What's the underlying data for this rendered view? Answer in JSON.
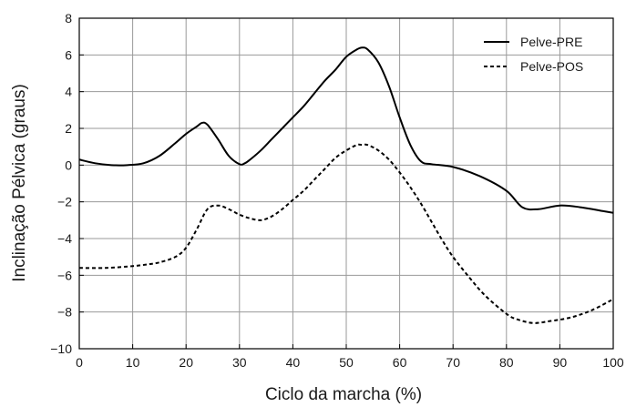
{
  "chart_data": {
    "type": "line",
    "title": "",
    "xlabel": "Ciclo da marcha (%)",
    "ylabel": "Inclinação Pélvica (graus)",
    "xlim": [
      0,
      100
    ],
    "ylim": [
      -10,
      8
    ],
    "xticks": [
      0,
      10,
      20,
      30,
      40,
      50,
      60,
      70,
      80,
      90,
      100
    ],
    "yticks": [
      -10,
      -8,
      -6,
      -4,
      -2,
      0,
      2,
      4,
      6,
      8
    ],
    "xtick_labels": [
      "0",
      "10",
      "20",
      "30",
      "40",
      "50",
      "60",
      "70",
      "80",
      "90",
      "100"
    ],
    "ytick_labels": [
      "−10",
      "−8",
      "−6",
      "−4",
      "−2",
      "0",
      "2",
      "4",
      "6",
      "8"
    ],
    "grid": true,
    "legend_position": "top-right",
    "series": [
      {
        "name": "Pelve-PRE",
        "line_style": "solid",
        "color": "#000000",
        "x": [
          0,
          3,
          6,
          9,
          12,
          15,
          18,
          20,
          22,
          23,
          24,
          26,
          28,
          30,
          31,
          32,
          34,
          36,
          38,
          40,
          42,
          44,
          46,
          48,
          50,
          52,
          53,
          54,
          56,
          58,
          60,
          62,
          64,
          66,
          70,
          75,
          80,
          83,
          86,
          90,
          94,
          98,
          100
        ],
        "y": [
          0.3,
          0.1,
          0.0,
          0.0,
          0.1,
          0.5,
          1.2,
          1.7,
          2.1,
          2.3,
          2.2,
          1.4,
          0.5,
          0.05,
          0.1,
          0.3,
          0.8,
          1.4,
          2.0,
          2.6,
          3.2,
          3.9,
          4.6,
          5.2,
          5.9,
          6.3,
          6.4,
          6.3,
          5.6,
          4.3,
          2.6,
          1.1,
          0.2,
          0.05,
          -0.1,
          -0.6,
          -1.4,
          -2.3,
          -2.4,
          -2.2,
          -2.3,
          -2.5,
          -2.6
        ]
      },
      {
        "name": "Pelve-POS",
        "line_style": "dashed",
        "color": "#000000",
        "x": [
          0,
          5,
          10,
          13,
          15,
          18,
          20,
          22,
          24,
          26,
          28,
          30,
          32,
          34,
          36,
          38,
          40,
          42,
          44,
          46,
          48,
          50,
          52,
          53,
          54,
          56,
          58,
          60,
          62,
          64,
          66,
          68,
          70,
          73,
          76,
          80,
          82,
          85,
          88,
          92,
          96,
          100
        ],
        "y": [
          -5.6,
          -5.6,
          -5.5,
          -5.4,
          -5.3,
          -5.0,
          -4.5,
          -3.5,
          -2.4,
          -2.2,
          -2.4,
          -2.7,
          -2.9,
          -3.0,
          -2.8,
          -2.4,
          -1.9,
          -1.4,
          -0.8,
          -0.2,
          0.4,
          0.8,
          1.1,
          1.1,
          1.1,
          0.8,
          0.3,
          -0.4,
          -1.2,
          -2.1,
          -3.1,
          -4.1,
          -5.0,
          -6.1,
          -7.1,
          -8.1,
          -8.4,
          -8.6,
          -8.5,
          -8.3,
          -7.9,
          -7.3
        ]
      }
    ]
  }
}
